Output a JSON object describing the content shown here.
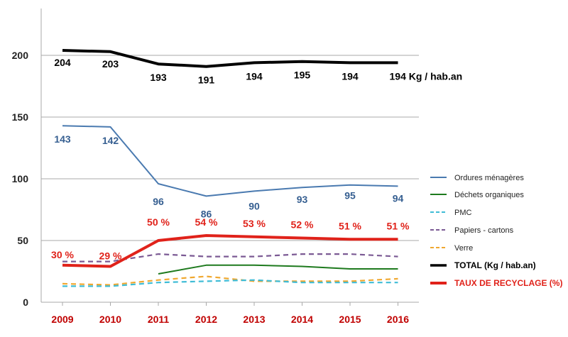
{
  "chart_data": {
    "type": "line",
    "categories": [
      "2009",
      "2010",
      "2011",
      "2012",
      "2013",
      "2014",
      "2015",
      "2016"
    ],
    "ylim": [
      0,
      225
    ],
    "yticks": [
      0,
      50,
      100,
      150,
      200
    ],
    "grid": "horizontal",
    "legend_position": "right",
    "series": [
      {
        "name": "Ordures ménagères",
        "color": "#4a7ab0",
        "style": "solid",
        "values": [
          143,
          142,
          96,
          86,
          90,
          93,
          95,
          94
        ],
        "data_labels": [
          "143",
          "142",
          "96",
          "86",
          "90",
          "93",
          "95",
          "94"
        ]
      },
      {
        "name": "Déchets organiques",
        "color": "#1e7a1e",
        "style": "solid",
        "values": [
          null,
          null,
          23,
          30,
          30,
          29,
          27,
          27
        ]
      },
      {
        "name": "PMC",
        "color": "#3fbcd6",
        "style": "dashed",
        "values": [
          13,
          13,
          16,
          17,
          18,
          16,
          16,
          16
        ]
      },
      {
        "name": "Papiers - cartons",
        "color": "#7b5a94",
        "style": "dashed",
        "values": [
          33,
          33,
          39,
          37,
          37,
          39,
          39,
          37
        ]
      },
      {
        "name": "Verre",
        "color": "#f0a830",
        "style": "dashed",
        "values": [
          15,
          14,
          18,
          21,
          17,
          17,
          17,
          19
        ]
      },
      {
        "name": "TOTAL  (Kg / hab.an)",
        "color": "#000000",
        "style": "solid",
        "values": [
          204,
          203,
          193,
          191,
          194,
          195,
          194,
          194
        ],
        "data_labels": [
          "204",
          "203",
          "193",
          "191",
          "194",
          "195",
          "194",
          "194 Kg / hab.an"
        ]
      },
      {
        "name": "TAUX DE RECYCLAGE (%)",
        "color": "#e0221a",
        "style": "solid",
        "values": [
          30,
          29,
          50,
          54,
          53,
          52,
          51,
          51
        ],
        "data_labels": [
          "30 %",
          "29 %",
          "50 %",
          "54 %",
          "53 %",
          "52 %",
          "51 %",
          "51 %"
        ]
      }
    ]
  }
}
